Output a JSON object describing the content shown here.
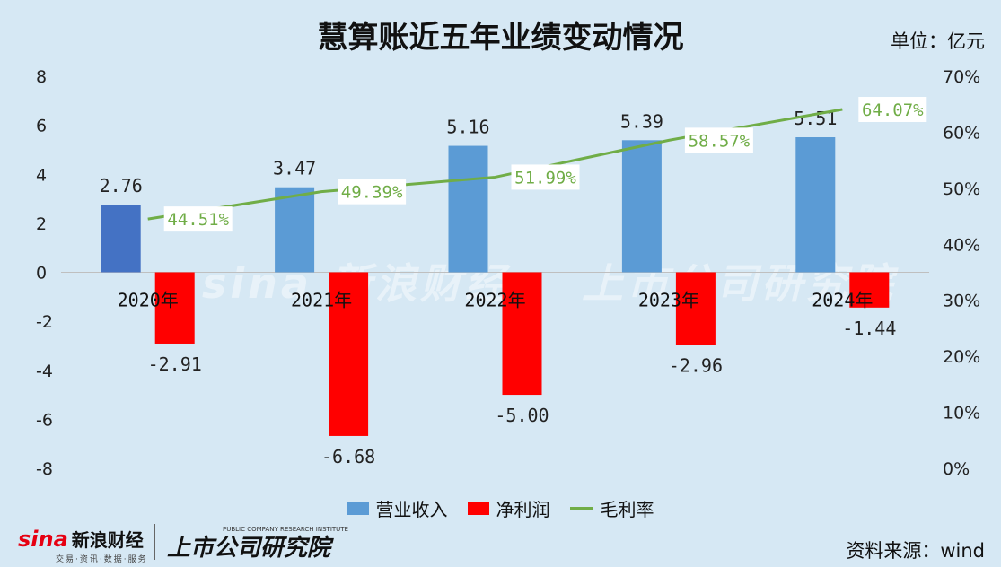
{
  "header": {
    "title": "慧算账近五年业绩变动情况",
    "unit": "单位：亿元"
  },
  "footer": {
    "source": "资料来源：wind",
    "sina_mark": "sina",
    "sina_name": "新浪财经",
    "sina_sub": "交易·资讯·数据·服务",
    "institute": "上市公司研究院",
    "institute_sub": "PUBLIC COMPANY RESEARCH INSTITUTE"
  },
  "colors": {
    "revenue": "#5b9bd5",
    "revenue_first": "#4472c4",
    "net_profit": "#ff0000",
    "gross_margin": "#70ad47",
    "background": "#d6e8f4"
  },
  "chart_data": {
    "type": "bar",
    "title": "慧算账近五年业绩变动情况",
    "categories": [
      "2020年",
      "2021年",
      "2022年",
      "2023年",
      "2024年"
    ],
    "series": [
      {
        "name": "营业收入",
        "type": "bar",
        "axis": "left",
        "values": [
          2.76,
          3.47,
          5.16,
          5.39,
          5.51
        ],
        "labels": [
          "2.76",
          "3.47",
          "5.16",
          "5.39",
          "5.51"
        ]
      },
      {
        "name": "净利润",
        "type": "bar",
        "axis": "left",
        "values": [
          -2.91,
          -6.68,
          -5.0,
          -2.96,
          -1.44
        ],
        "labels": [
          "-2.91",
          "-6.68",
          "-5.00",
          "-2.96",
          "-1.44"
        ]
      },
      {
        "name": "毛利率",
        "type": "line",
        "axis": "right",
        "values": [
          44.51,
          49.39,
          51.99,
          58.57,
          64.07
        ],
        "labels": [
          "44.51%",
          "49.39%",
          "51.99%",
          "58.57%",
          "64.07%"
        ]
      }
    ],
    "y_left": {
      "lim": [
        -8,
        8
      ],
      "ticks": [
        "8",
        "6",
        "4",
        "2",
        "0",
        "-2",
        "-4",
        "-6",
        "-8"
      ]
    },
    "y_right": {
      "lim": [
        0,
        70
      ],
      "ticks": [
        "70%",
        "60%",
        "50%",
        "40%",
        "30%",
        "20%",
        "10%",
        "0%"
      ]
    },
    "legend_position": "bottom",
    "grid": false
  }
}
